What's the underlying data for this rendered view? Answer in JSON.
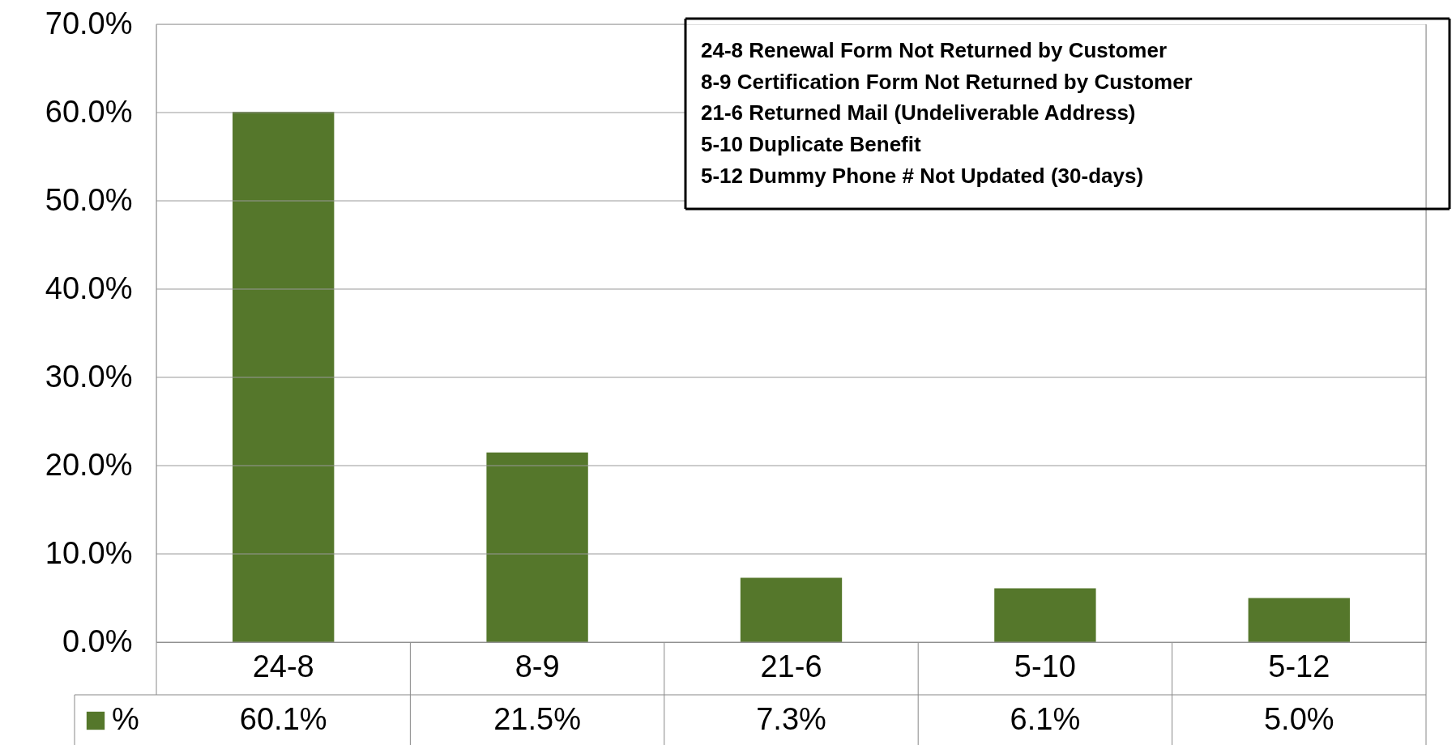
{
  "chart_data": {
    "type": "bar",
    "categories": [
      "24-8",
      "8-9",
      "21-6",
      "5-10",
      "5-12"
    ],
    "series": [
      {
        "name": "%",
        "color": "#55772b",
        "values": [
          60.1,
          21.5,
          7.3,
          6.1,
          5.0
        ],
        "value_labels": [
          "60.1%",
          "21.5%",
          "7.3%",
          "6.1%",
          "5.0%"
        ]
      }
    ],
    "ylim": [
      0,
      70
    ],
    "yticks": [
      {
        "value": 0,
        "label": "0.0%"
      },
      {
        "value": 10,
        "label": "10.0%"
      },
      {
        "value": 20,
        "label": "20.0%"
      },
      {
        "value": 30,
        "label": "30.0%"
      },
      {
        "value": 40,
        "label": "40.0%"
      },
      {
        "value": 50,
        "label": "50.0%"
      },
      {
        "value": 60,
        "label": "60.0%"
      },
      {
        "value": 70,
        "label": "70.0%"
      }
    ],
    "grid": "y",
    "annotations": [
      "24-8  Renewal Form Not Returned by Customer",
      "8-9    Certification Form Not Returned by Customer",
      "21-6  Returned Mail (Undeliverable Address)",
      "5-10  Duplicate Benefit",
      "5-12  Dummy Phone # Not Updated (30-days)"
    ]
  }
}
